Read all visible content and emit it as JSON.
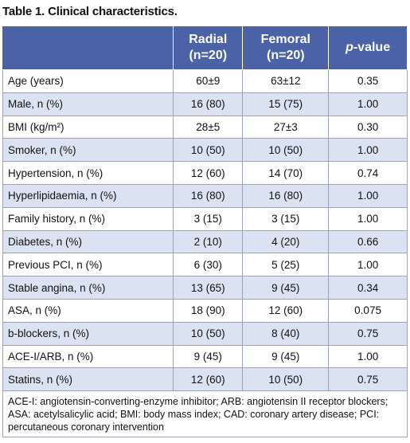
{
  "title": "Table 1. Clinical characteristics.",
  "table": {
    "header": {
      "col1": [
        "Radial",
        "(n=20)"
      ],
      "col2": [
        "Femoral",
        "(n=20)"
      ],
      "col3": {
        "italic": "p",
        "rest": "-value"
      }
    },
    "rows": [
      [
        "Age (years)",
        "60±9",
        "63±12",
        "0.35"
      ],
      [
        "Male, n (%)",
        "16 (80)",
        "15 (75)",
        "1.00"
      ],
      [
        "BMI (kg/m²)",
        "28±5",
        "27±3",
        "0.30"
      ],
      [
        "Smoker, n (%)",
        "10 (50)",
        "10 (50)",
        "1.00"
      ],
      [
        "Hypertension, n (%)",
        "12 (60)",
        "14 (70)",
        "0.74"
      ],
      [
        "Hyperlipidaemia, n (%)",
        "16 (80)",
        "16 (80)",
        "1.00"
      ],
      [
        "Family history, n (%)",
        "3 (15)",
        "3 (15)",
        "1.00"
      ],
      [
        "Diabetes, n (%)",
        "2 (10)",
        "4 (20)",
        "0.66"
      ],
      [
        "Previous PCI, n (%)",
        "6 (30)",
        "5 (25)",
        "1.00"
      ],
      [
        "Stable angina, n (%)",
        "13 (65)",
        "9 (45)",
        "0.34"
      ],
      [
        "ASA, n (%)",
        "18 (90)",
        "12 (60)",
        "0.075"
      ],
      [
        "b-blockers, n (%)",
        "10 (50)",
        "8 (40)",
        "0.75"
      ],
      [
        "ACE-I/ARB, n (%)",
        "9 (45)",
        "9 (45)",
        "1.00"
      ],
      [
        "Statins, n (%)",
        "12 (60)",
        "10 (50)",
        "0.75"
      ]
    ],
    "footnote": "ACE-I: angiotensin-converting-enzyme inhibitor; ARB: angiotensin II receptor blockers; ASA: acetylsalicylic acid; BMI: body mass index; CAD: coronary artery disease; PCI: percutaneous coronary intervention"
  }
}
